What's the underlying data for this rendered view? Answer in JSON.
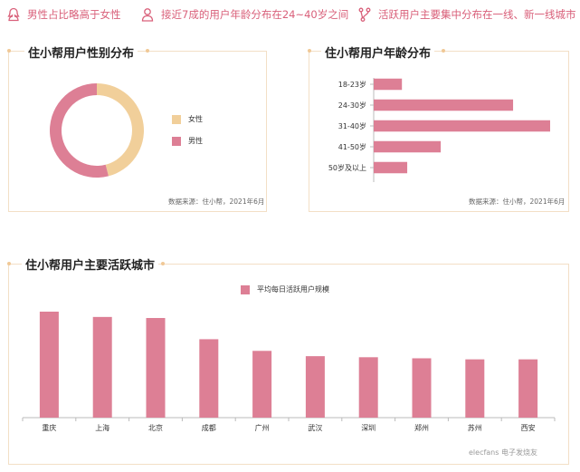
{
  "top_bar": {
    "items": [
      {
        "icon": "female-user-icon",
        "text": "男性占比略高于女性"
      },
      {
        "icon": "user-icon",
        "text": "接近7成的用户年龄分布在24~40岁之间"
      },
      {
        "icon": "branch-icon",
        "text": "活跃用户主要集中分布在一线、新一线城市"
      }
    ]
  },
  "colors": {
    "accent": "#d9607a",
    "female": "#f1cf9a",
    "male": "#dd7f95",
    "border": "#f3dfc6"
  },
  "gender_card": {
    "title": "住小帮用户性别分布",
    "source": "数据来源：住小帮，2021年6月"
  },
  "age_card": {
    "title": "住小帮用户年龄分布",
    "source": "数据来源：住小帮，2021年6月"
  },
  "city_card": {
    "title": "住小帮用户主要活跃城市"
  },
  "watermark": "elecfans 电子发烧友",
  "chart_data": [
    {
      "type": "pie",
      "donut": true,
      "title": "住小帮用户性别分布",
      "labels": [
        "女性",
        "男性"
      ],
      "values": [
        46,
        54
      ],
      "colors": [
        "#f1cf9a",
        "#dd7f95"
      ],
      "legend": "right"
    },
    {
      "type": "bar",
      "orientation": "horizontal",
      "title": "住小帮用户年龄分布",
      "categories": [
        "18-23岁",
        "24-30岁",
        "31-40岁",
        "41-50岁",
        "50岁及以上"
      ],
      "values": [
        16,
        79,
        100,
        38,
        19
      ],
      "xlim": [
        0,
        100
      ],
      "color": "#dd7f95"
    },
    {
      "type": "bar",
      "title": "住小帮用户主要活跃城市",
      "categories": [
        "重庆",
        "上海",
        "北京",
        "成都",
        "广州",
        "武汉",
        "深圳",
        "郑州",
        "苏州",
        "西安"
      ],
      "series": [
        {
          "name": "平均每日活跃用户规模",
          "values": [
            100,
            95,
            94,
            74,
            63,
            58,
            57,
            56,
            55,
            55
          ]
        }
      ],
      "ylim": [
        0,
        100
      ],
      "legend": "top",
      "color": "#dd7f95"
    }
  ]
}
